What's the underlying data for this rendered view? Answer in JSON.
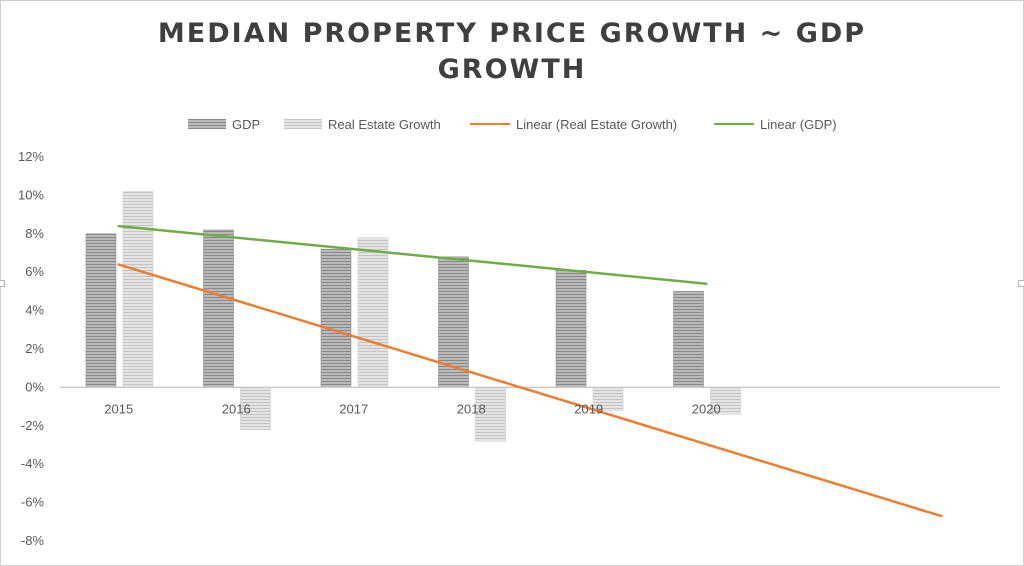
{
  "chart_data": {
    "type": "bar",
    "title_lines": [
      "MEDIAN PROPERTY PRICE GROWTH ~  GDP",
      "GROWTH"
    ],
    "categories": [
      "2015",
      "2016",
      "2017",
      "2018",
      "2019",
      "2020"
    ],
    "series": [
      {
        "name": "GDP",
        "values": [
          0.08,
          0.082,
          0.072,
          0.068,
          0.061,
          0.05
        ],
        "color": "#9a9a9a"
      },
      {
        "name": "Real Estate Growth",
        "values": [
          0.102,
          -0.022,
          0.078,
          -0.028,
          -0.012,
          -0.014
        ],
        "color": "#d4d4d4"
      }
    ],
    "trendlines": [
      {
        "name": "Linear (Real Estate Growth)",
        "color": "#ed7d31",
        "start": [
          1,
          0.064
        ],
        "end": [
          8,
          -0.067
        ]
      },
      {
        "name": "Linear (GDP)",
        "color": "#70ad47",
        "start": [
          1,
          0.084
        ],
        "end": [
          6,
          0.054
        ]
      }
    ],
    "y_ticks": [
      "12%",
      "10%",
      "8%",
      "6%",
      "4%",
      "2%",
      "0%",
      "-2%",
      "-4%",
      "-6%",
      "-8%"
    ],
    "ylim": [
      -0.08,
      0.12
    ],
    "legend_position": "top",
    "grid": false
  }
}
